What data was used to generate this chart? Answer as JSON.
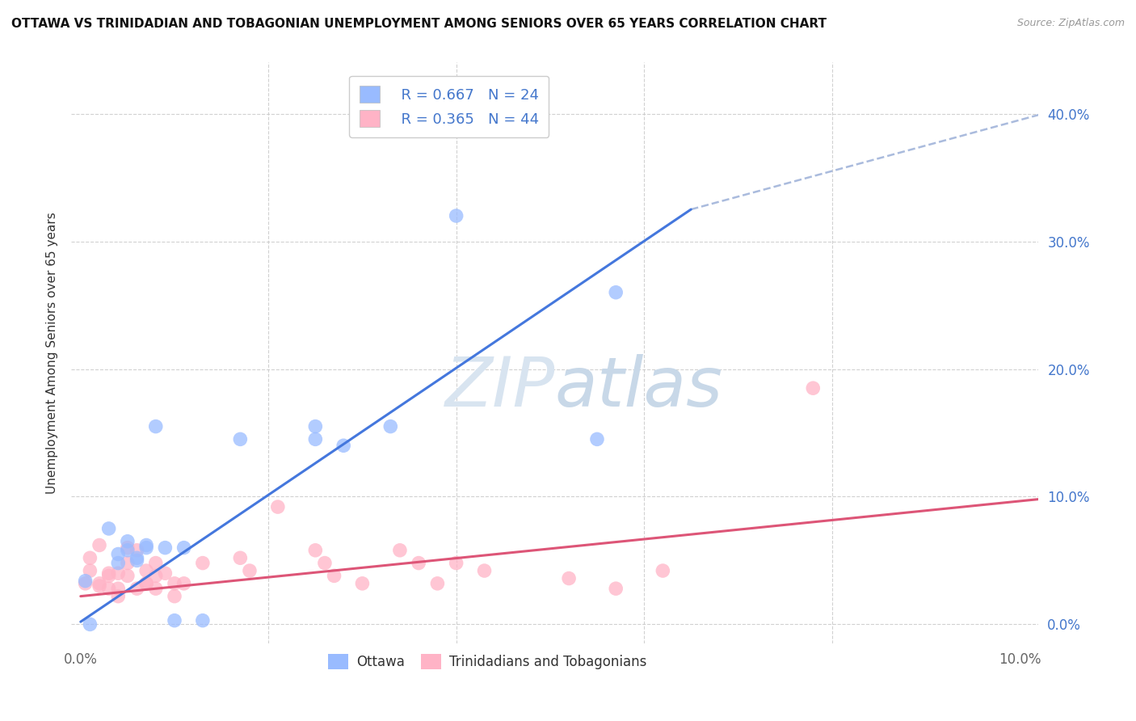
{
  "title": "OTTAWA VS TRINIDADIAN AND TOBAGONIAN UNEMPLOYMENT AMONG SENIORS OVER 65 YEARS CORRELATION CHART",
  "source": "Source: ZipAtlas.com",
  "ylabel": "Unemployment Among Seniors over 65 years",
  "xlim": [
    -0.001,
    0.102
  ],
  "ylim": [
    -0.015,
    0.44
  ],
  "xticks": [
    0.0,
    0.1
  ],
  "xtick_labels": [
    "0.0%",
    "10.0%"
  ],
  "yticks": [
    0.0,
    0.1,
    0.2,
    0.3,
    0.4
  ],
  "ytick_labels": [
    "0.0%",
    "10.0%",
    "20.0%",
    "30.0%",
    "40.0%"
  ],
  "blue_R": "R = 0.667",
  "blue_N": "N = 24",
  "pink_R": "R = 0.365",
  "pink_N": "N = 44",
  "blue_color": "#99BBFF",
  "pink_color": "#FFB3C6",
  "blue_line_color": "#4477DD",
  "pink_line_color": "#DD5577",
  "dashed_line_color": "#AABBDD",
  "blue_scatter": [
    [
      0.0005,
      0.034
    ],
    [
      0.001,
      0.0
    ],
    [
      0.003,
      0.075
    ],
    [
      0.004,
      0.048
    ],
    [
      0.004,
      0.055
    ],
    [
      0.005,
      0.058
    ],
    [
      0.005,
      0.065
    ],
    [
      0.006,
      0.052
    ],
    [
      0.006,
      0.05
    ],
    [
      0.007,
      0.06
    ],
    [
      0.007,
      0.062
    ],
    [
      0.008,
      0.155
    ],
    [
      0.009,
      0.06
    ],
    [
      0.01,
      0.003
    ],
    [
      0.011,
      0.06
    ],
    [
      0.013,
      0.003
    ],
    [
      0.017,
      0.145
    ],
    [
      0.025,
      0.155
    ],
    [
      0.025,
      0.145
    ],
    [
      0.028,
      0.14
    ],
    [
      0.033,
      0.155
    ],
    [
      0.04,
      0.32
    ],
    [
      0.057,
      0.26
    ],
    [
      0.055,
      0.145
    ]
  ],
  "pink_scatter": [
    [
      0.0005,
      0.032
    ],
    [
      0.001,
      0.042
    ],
    [
      0.001,
      0.052
    ],
    [
      0.002,
      0.032
    ],
    [
      0.002,
      0.03
    ],
    [
      0.002,
      0.062
    ],
    [
      0.003,
      0.038
    ],
    [
      0.003,
      0.028
    ],
    [
      0.003,
      0.04
    ],
    [
      0.004,
      0.04
    ],
    [
      0.004,
      0.028
    ],
    [
      0.004,
      0.022
    ],
    [
      0.005,
      0.038
    ],
    [
      0.005,
      0.06
    ],
    [
      0.005,
      0.048
    ],
    [
      0.006,
      0.058
    ],
    [
      0.006,
      0.028
    ],
    [
      0.007,
      0.032
    ],
    [
      0.007,
      0.042
    ],
    [
      0.007,
      0.032
    ],
    [
      0.008,
      0.038
    ],
    [
      0.008,
      0.028
    ],
    [
      0.008,
      0.048
    ],
    [
      0.009,
      0.04
    ],
    [
      0.01,
      0.032
    ],
    [
      0.01,
      0.022
    ],
    [
      0.011,
      0.032
    ],
    [
      0.013,
      0.048
    ],
    [
      0.017,
      0.052
    ],
    [
      0.018,
      0.042
    ],
    [
      0.021,
      0.092
    ],
    [
      0.025,
      0.058
    ],
    [
      0.026,
      0.048
    ],
    [
      0.027,
      0.038
    ],
    [
      0.03,
      0.032
    ],
    [
      0.034,
      0.058
    ],
    [
      0.036,
      0.048
    ],
    [
      0.038,
      0.032
    ],
    [
      0.04,
      0.048
    ],
    [
      0.043,
      0.042
    ],
    [
      0.052,
      0.036
    ],
    [
      0.057,
      0.028
    ],
    [
      0.062,
      0.042
    ],
    [
      0.078,
      0.185
    ]
  ],
  "blue_line_solid": [
    [
      0.0,
      0.002
    ],
    [
      0.065,
      0.325
    ]
  ],
  "blue_line_dashed": [
    [
      0.065,
      0.325
    ],
    [
      0.105,
      0.405
    ]
  ],
  "pink_line": [
    [
      0.0,
      0.022
    ],
    [
      0.102,
      0.098
    ]
  ],
  "background_color": "#FFFFFF",
  "grid_color": "#CCCCCC",
  "watermark_color": "#D8E4F0",
  "right_tick_color": "#4477CC",
  "bottom_tick_color": "#666666"
}
